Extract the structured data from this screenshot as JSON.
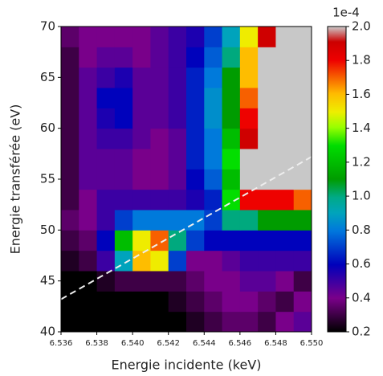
{
  "chart_data": {
    "type": "heatmap",
    "x_label": "Energie incidente (keV)",
    "y_label": "Energie transférée (eV)",
    "x_edges": [
      6.536,
      6.537,
      6.538,
      6.539,
      6.54,
      6.541,
      6.542,
      6.543,
      6.544,
      6.545,
      6.546,
      6.547,
      6.548,
      6.549,
      6.55
    ],
    "y_edges": [
      40,
      42,
      44,
      46,
      48,
      50,
      52,
      54,
      56,
      58,
      60,
      62,
      64,
      66,
      68,
      70
    ],
    "values": [
      [
        0.2,
        0.2,
        0.2,
        0.2,
        0.2,
        0.2,
        0.2,
        0.25,
        0.3,
        0.35,
        0.35,
        0.3,
        0.4,
        0.45
      ],
      [
        0.2,
        0.2,
        0.2,
        0.2,
        0.2,
        0.2,
        0.25,
        0.3,
        0.35,
        0.4,
        0.4,
        0.35,
        0.3,
        0.4
      ],
      [
        0.2,
        0.2,
        0.25,
        0.3,
        0.3,
        0.3,
        0.3,
        0.35,
        0.4,
        0.4,
        0.45,
        0.45,
        0.4,
        0.3
      ],
      [
        0.25,
        0.3,
        0.5,
        0.9,
        1.6,
        1.5,
        0.7,
        0.4,
        0.4,
        0.45,
        0.5,
        0.5,
        0.5,
        0.5
      ],
      [
        0.3,
        0.35,
        0.6,
        1.2,
        1.5,
        1.7,
        1.0,
        0.7,
        0.6,
        0.6,
        0.6,
        0.6,
        0.6,
        0.6
      ],
      [
        0.35,
        0.4,
        0.5,
        0.7,
        0.8,
        0.8,
        0.8,
        0.8,
        0.7,
        1.0,
        1.0,
        1.1,
        1.1,
        1.1
      ],
      [
        0.3,
        0.4,
        0.5,
        0.5,
        0.5,
        0.5,
        0.5,
        0.55,
        0.65,
        1.3,
        1.8,
        1.8,
        1.8,
        1.7
      ],
      [
        0.3,
        0.45,
        0.45,
        0.45,
        0.4,
        0.4,
        0.45,
        0.6,
        0.75,
        1.2,
        2.5,
        2.5,
        2.5,
        2.5
      ],
      [
        0.3,
        0.45,
        0.45,
        0.45,
        0.4,
        0.4,
        0.45,
        0.65,
        0.8,
        1.3,
        2.5,
        2.5,
        2.5,
        2.5
      ],
      [
        0.3,
        0.45,
        0.5,
        0.5,
        0.45,
        0.4,
        0.45,
        0.65,
        0.8,
        1.2,
        1.9,
        2.5,
        2.5,
        2.5
      ],
      [
        0.3,
        0.45,
        0.55,
        0.6,
        0.45,
        0.45,
        0.5,
        0.65,
        0.85,
        1.1,
        1.8,
        2.5,
        2.5,
        2.5
      ],
      [
        0.3,
        0.45,
        0.6,
        0.6,
        0.45,
        0.45,
        0.5,
        0.65,
        0.85,
        1.1,
        1.7,
        2.5,
        2.5,
        2.5
      ],
      [
        0.3,
        0.45,
        0.5,
        0.55,
        0.45,
        0.45,
        0.5,
        0.65,
        0.8,
        1.1,
        1.6,
        2.5,
        2.5,
        2.5
      ],
      [
        0.3,
        0.4,
        0.45,
        0.45,
        0.4,
        0.45,
        0.5,
        0.6,
        0.75,
        1.0,
        1.6,
        2.5,
        2.5,
        2.5
      ],
      [
        0.35,
        0.4,
        0.4,
        0.4,
        0.4,
        0.45,
        0.5,
        0.55,
        0.7,
        0.9,
        1.5,
        1.9,
        2.5,
        2.5
      ]
    ],
    "xlim": [
      6.536,
      6.55
    ],
    "ylim": [
      40,
      70
    ],
    "xticks": [
      6.536,
      6.538,
      {
        "value": 6.54,
        "label": "6.540"
      },
      6.542,
      6.544,
      6.546,
      6.548,
      {
        "value": 6.55,
        "label": "6.550"
      }
    ],
    "yticks": [
      40,
      45,
      50,
      55,
      60,
      65,
      70
    ],
    "zlim": [
      0.2,
      2.0
    ],
    "zticks": [
      0.2,
      0.4,
      0.6,
      0.8,
      {
        "value": 1.0,
        "label": "1.0"
      },
      1.2,
      1.4,
      1.6,
      1.8,
      {
        "value": 2.0,
        "label": "2.0"
      }
    ],
    "z_offset_label": "1e-4",
    "colormap": "nipy_spectral",
    "over_color": "#c8c8c8",
    "guide_line": {
      "x": [
        6.536,
        6.55
      ],
      "y": [
        43.2,
        57.2
      ],
      "color": "#eeeeee"
    }
  }
}
